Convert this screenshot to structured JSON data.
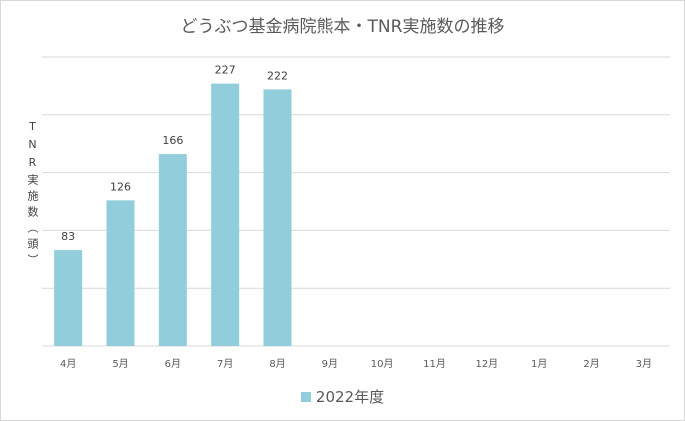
{
  "chart_data": {
    "type": "bar",
    "title": "どうぶつ基金病院熊本・TNR実施数の推移",
    "ylabel": "TNR実施数（頭）",
    "xlabel": "",
    "categories": [
      "4月",
      "5月",
      "6月",
      "7月",
      "8月",
      "9月",
      "10月",
      "11月",
      "12月",
      "1月",
      "2月",
      "3月"
    ],
    "series": [
      {
        "name": "2022年度",
        "values": [
          83,
          126,
          166,
          227,
          222,
          null,
          null,
          null,
          null,
          null,
          null,
          null
        ]
      }
    ],
    "ylim": [
      0,
      250
    ],
    "grid": true,
    "legend_position": "bottom",
    "bar_color": "#92cddc",
    "grid_color": "#d9d9d9"
  }
}
